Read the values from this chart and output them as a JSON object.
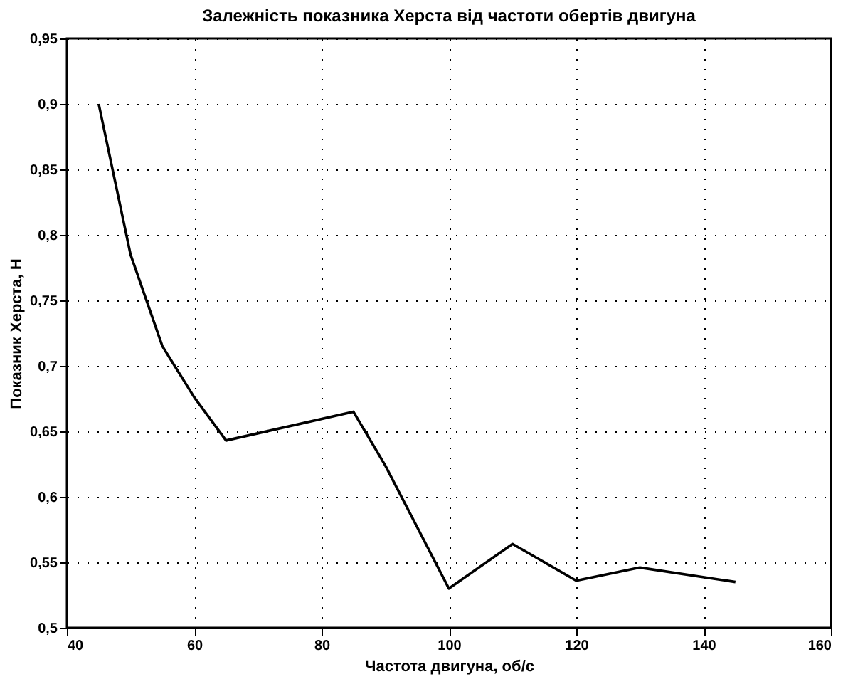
{
  "chart_data": {
    "type": "line",
    "title": "Залежність показника Херста від частоти обертів двигуна",
    "xlabel": "Частота двигуна, об/с",
    "ylabel": "Показник Херста, H",
    "x": [
      45,
      50,
      55,
      60,
      65,
      85,
      90,
      100,
      110,
      120,
      130,
      145
    ],
    "series": [
      {
        "color": "#000000",
        "values": [
          0.9,
          0.785,
          0.715,
          0.676,
          0.643,
          0.665,
          0.624,
          0.53,
          0.564,
          0.536,
          0.546,
          0.535
        ]
      }
    ],
    "xlim": [
      40,
      160
    ],
    "xticks": [
      40,
      60,
      80,
      100,
      120,
      140,
      160
    ],
    "ylim": [
      0.5,
      0.95
    ],
    "yticks": [
      {
        "value": 0.5,
        "label": "0,5"
      },
      {
        "value": 0.55,
        "label": "0,55"
      },
      {
        "value": 0.6,
        "label": "0,6"
      },
      {
        "value": 0.65,
        "label": "0,65"
      },
      {
        "value": 0.7,
        "label": "0,7"
      },
      {
        "value": 0.75,
        "label": "0,75"
      },
      {
        "value": 0.8,
        "label": "0,8"
      },
      {
        "value": 0.85,
        "label": "0,85"
      },
      {
        "value": 0.9,
        "label": "0,9"
      },
      {
        "value": 0.95,
        "label": "0,95"
      }
    ],
    "grid": true,
    "line_style": "solid",
    "marker": "none"
  }
}
